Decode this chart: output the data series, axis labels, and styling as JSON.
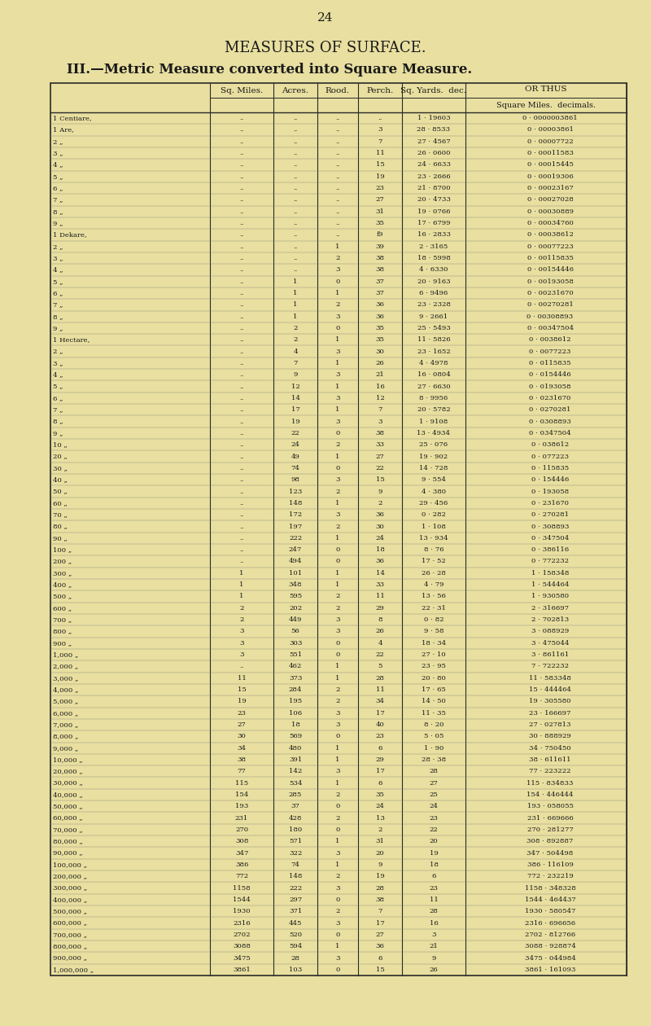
{
  "page_number": "24",
  "title1": "MEASURES OF SURFACE.",
  "title2": "III.—Metric Measure converted into Square Measure.",
  "bg_color": "#e8dfa0",
  "row_labels_col": [
    "1 Centiare,",
    "1 Are,",
    "2 „",
    "3 „",
    "4 „",
    "5 „",
    "6 „",
    "7 „",
    "8 „",
    "9 „",
    "1 Dekare,",
    "2 „",
    "3 „",
    "4 „",
    "5 „",
    "6 „",
    "7 „",
    "8 „",
    "9 „",
    "1 Hectare,",
    "2 „",
    "3 „",
    "4 „",
    "5 „",
    "6 „",
    "7 „",
    "8 „",
    "9 „",
    "10 „",
    "20 „",
    "30 „",
    "40 „",
    "50 „",
    "60 „",
    "70 „",
    "80 „",
    "90 „",
    "100 „",
    "200 „",
    "300 „",
    "400 „",
    "500 „",
    "600 „",
    "700 „",
    "800 „",
    "900 „",
    "1,000 „",
    "2,000 „",
    "3,000 „",
    "4,000 „",
    "5,000 „",
    "6,000 „",
    "7,000 „",
    "8,000 „",
    "9,000 „",
    "10,000 „",
    "20,000 „",
    "30,000 „",
    "40,000 „",
    "50,000 „",
    "60,000 „",
    "70,000 „",
    "80,000 „",
    "90,000 „",
    "100,000 „",
    "200,000 „",
    "300,000 „",
    "400,000 „",
    "500,000 „",
    "600,000 „",
    "700,000 „",
    "800,000 „",
    "900,000 „",
    "1,000,000 „"
  ],
  "col1": [
    "..",
    "..",
    "..",
    "..",
    "..",
    "..",
    "..",
    "..",
    "..",
    "..",
    "..",
    "..",
    "..",
    "..",
    "..",
    "..",
    "..",
    "..",
    "..",
    "..",
    "..",
    "..",
    "..",
    "..",
    "..",
    "..",
    "..",
    "..",
    "..",
    "..",
    "..",
    "..",
    "..",
    "..",
    "..",
    "..",
    "..",
    "..",
    "..",
    "1",
    "1",
    "1",
    "2",
    "2",
    "3",
    "3",
    "3",
    "..",
    "11",
    "15",
    "19",
    "23",
    "27",
    "30",
    "34",
    "38",
    "77",
    "115",
    "154",
    "193",
    "231",
    "270",
    "308",
    "347",
    "386",
    "772",
    "1158",
    "1544",
    "1930",
    "2316",
    "2702",
    "3088",
    "3475",
    "3861"
  ],
  "col2": [
    "..",
    "..",
    "..",
    "..",
    "..",
    "..",
    "..",
    "..",
    "..",
    "..",
    "..",
    "..",
    "..",
    "..",
    "1",
    "1",
    "1",
    "1",
    "2",
    "2",
    "4",
    "7",
    "9",
    "12",
    "14",
    "17",
    "19",
    "22",
    "24",
    "49",
    "74",
    "98",
    "123",
    "148",
    "172",
    "197",
    "222",
    "247",
    "494",
    "101",
    "348",
    "595",
    "202",
    "449",
    "56",
    "303",
    "551",
    "462",
    "373",
    "284",
    "195",
    "106",
    "18",
    "569",
    "480",
    "391",
    "142",
    "534",
    "285",
    "37",
    "428",
    "180",
    "571",
    "322",
    "74",
    "148",
    "222",
    "297",
    "371",
    "445",
    "520",
    "594",
    "28",
    "103"
  ],
  "col3": [
    "..",
    "..",
    "..",
    "..",
    "..",
    "..",
    "..",
    "..",
    "..",
    "..",
    "..",
    "1",
    "2",
    "3",
    "0",
    "1",
    "2",
    "3",
    "0",
    "1",
    "3",
    "1",
    "3",
    "1",
    "3",
    "1",
    "3",
    "0",
    "2",
    "1",
    "0",
    "3",
    "2",
    "1",
    "3",
    "2",
    "1",
    "0",
    "0",
    "1",
    "1",
    "2",
    "2",
    "3",
    "3",
    "0",
    "0",
    "1",
    "1",
    "2",
    "2",
    "3",
    "3",
    "0",
    "1",
    "1",
    "3",
    "1",
    "2",
    "0",
    "2",
    "0",
    "1",
    "3",
    "1",
    "2",
    "3",
    "0",
    "2",
    "3",
    "0",
    "1",
    "3",
    "0"
  ],
  "col4": [
    "..",
    "3",
    "7",
    "11",
    "15",
    "19",
    "23",
    "27",
    "31",
    "35",
    "f9",
    "39",
    "38",
    "38",
    "37",
    "37",
    "36",
    "36",
    "35",
    "35",
    "30",
    "26",
    "21",
    "16",
    "12",
    "7",
    "3",
    "38",
    "33",
    "27",
    "22",
    "15",
    "9",
    "2",
    "36",
    "30",
    "24",
    "18",
    "36",
    "14",
    "33",
    "11",
    "29",
    "8",
    "26",
    "4",
    "22",
    "5",
    "28",
    "11",
    "34",
    "17",
    "40",
    "23",
    "6",
    "29",
    "17",
    "6",
    "35",
    "24",
    "13",
    "2",
    "31",
    "20",
    "9",
    "19",
    "28",
    "38",
    "7",
    "17",
    "27",
    "36",
    "6",
    "15"
  ],
  "col5a": [
    "1",
    "28",
    "27",
    "26",
    "24",
    "23",
    "21",
    "20",
    "19",
    "17",
    "16",
    "2",
    "18",
    "4",
    "20",
    "6",
    "23",
    "9",
    "25",
    "11",
    "23",
    "4",
    "16",
    "27",
    "8",
    "20",
    "1",
    "13",
    "25",
    "19",
    "14",
    "9",
    "4",
    "29",
    "0",
    "1",
    "13",
    "8",
    "17",
    "26",
    "4",
    "13",
    "22",
    "0",
    "9",
    "18",
    "27",
    "23",
    "20",
    "17",
    "14",
    "11",
    "8",
    "5",
    "1",
    "28",
    "28",
    "27",
    "25",
    "24",
    "23",
    "22",
    "20",
    "19",
    "18",
    "6",
    "23",
    "11",
    "28",
    "16",
    "3",
    "21",
    "9",
    "26"
  ],
  "col5b": [
    "19603",
    "8533",
    "4567",
    "0600",
    "6633",
    "2666",
    "8700",
    "4733",
    "0766",
    "6799",
    "2833",
    "3165",
    "5998",
    "6330",
    "9163",
    "9496",
    "2328",
    "2661",
    "5493",
    "5826",
    "1652",
    "4978",
    "0804",
    "6630",
    "9956",
    "5782",
    "9108",
    "4934",
    "076",
    "902",
    "728",
    "554",
    "380",
    "456",
    "282",
    "108",
    "934",
    "76",
    "52",
    "28",
    "79",
    "56",
    "31",
    "82",
    "58",
    "34",
    "10",
    "95",
    "80",
    "65",
    "50",
    "35",
    "20",
    "05",
    "90",
    "38",
    "",
    "",
    "",
    "",
    "",
    "",
    "",
    "",
    "",
    "",
    "",
    "",
    "",
    "",
    "",
    "",
    "",
    ""
  ],
  "col6": [
    "0 · 0000003861",
    "0 · 00003861",
    "0 · 00007722",
    "0 · 00011583",
    "0 · 00015445",
    "0 · 00019306",
    "0 · 00023167",
    "0 · 00027028",
    "0 · 00030889",
    "0 · 00034760",
    "0 · 00038612",
    "0 · 00077223",
    "0 · 00115835",
    "0 · 00154446",
    "0 · 00193058",
    "0 · 00231670",
    "0 · 00270281",
    "0 · 00308893",
    "0 · 00347504",
    "0 · 0038612",
    "0 · 0077223",
    "0 · 0115835",
    "0 · 0154446",
    "0 · 0193058",
    "0 · 0231670",
    "0 · 0270281",
    "0 · 0308893",
    "0 · 0347504",
    "0 · 038612",
    "0 · 077223",
    "0 · 115835",
    "0 · 154446",
    "0 · 193058",
    "0 · 231670",
    "0 · 270281",
    "0 · 308893",
    "0 · 347504",
    "0 · 386116",
    "0 · 772232",
    "1 · 158348",
    "1 · 544464",
    "1 · 930580",
    "2 · 316697",
    "2 · 702813",
    "3 · 088929",
    "3 · 475044",
    "3 · 861161",
    "7 · 722232",
    "11 · 583348",
    "15 · 444464",
    "19 · 305580",
    "23 · 166697",
    "27 · 027813",
    "30 · 888929",
    "34 · 750450",
    "38 · 611611",
    "77 · 223222",
    "115 · 834833",
    "154 · 446444",
    "193 · 058055",
    "231 · 669666",
    "270 · 281277",
    "308 · 892887",
    "347 · 504498",
    "386 · 116109",
    "772 · 232219",
    "1158 · 348328",
    "1544 · 464437",
    "1930 · 580547",
    "2316 · 696656",
    "2702 · 812766",
    "3088 · 928874",
    "3475 · 044984",
    "3861 · 161093"
  ]
}
